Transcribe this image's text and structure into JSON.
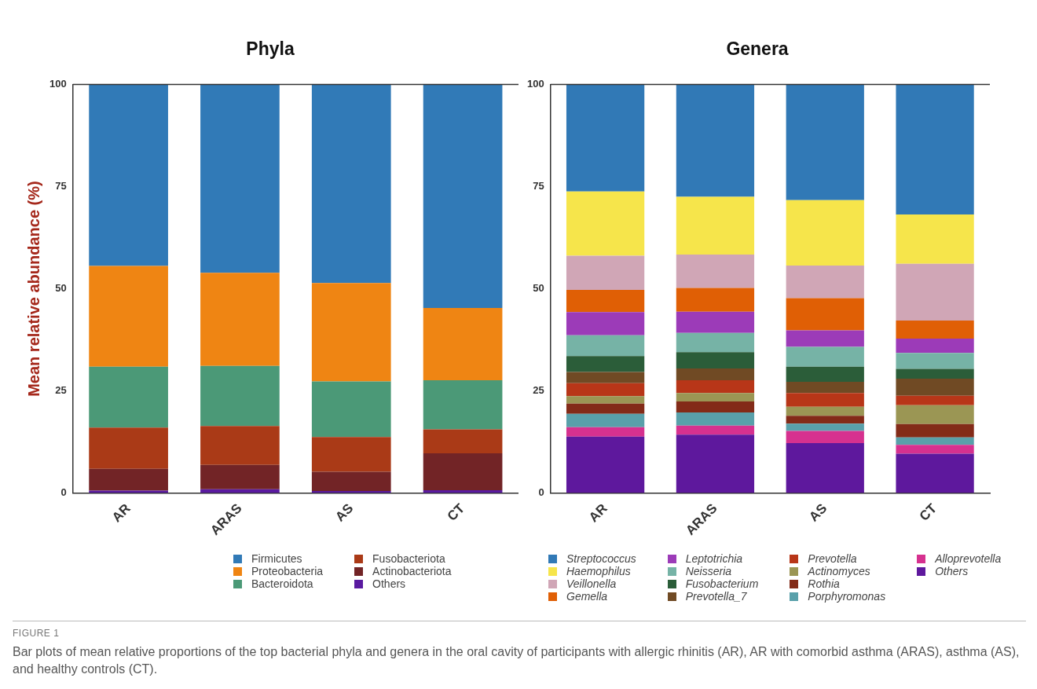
{
  "chart_data": [
    {
      "type": "bar",
      "title": "Phyla",
      "ylabel": "Mean relative abundance (%)",
      "categories": [
        "AR",
        "ARAS",
        "AS",
        "CT"
      ],
      "stacked": true,
      "ylim": [
        0,
        100
      ],
      "yticks": [
        0,
        25,
        50,
        75,
        100
      ],
      "grid": false,
      "legend": "bottom",
      "series": [
        {
          "name": "Others",
          "color": "#5a1aa0",
          "values": [
            0.6,
            0.9,
            0.5,
            0.7
          ]
        },
        {
          "name": "Actinobacteriota",
          "color": "#722426",
          "values": [
            5.3,
            6.0,
            4.7,
            9.0
          ]
        },
        {
          "name": "Fusobacteriota",
          "color": "#aa3a17",
          "values": [
            10.1,
            9.5,
            8.5,
            5.9
          ]
        },
        {
          "name": "Bacteroidota",
          "color": "#4b9977",
          "values": [
            14.9,
            14.7,
            13.6,
            12.0
          ]
        },
        {
          "name": "Proteobacteria",
          "color": "#ef8513",
          "values": [
            24.7,
            22.8,
            24.1,
            17.7
          ]
        },
        {
          "name": "Firmicutes",
          "color": "#317ab7",
          "values": [
            44.4,
            46.1,
            48.6,
            54.7
          ]
        }
      ],
      "annotations": [
        "FIGURE 1",
        "Bar plots of mean relative proportions of the top bacterial phyla and genera in the oral cavity of participants with allergic rhinitis (AR), AR with comorbid asthma (ARAS), asthma (AS), and healthy controls (CT)."
      ]
    },
    {
      "type": "bar",
      "title": "Genera",
      "categories": [
        "AR",
        "ARAS",
        "AS",
        "CT"
      ],
      "stacked": true,
      "ylim": [
        0,
        100
      ],
      "yticks": [
        0,
        25,
        50,
        75,
        100
      ],
      "grid": false,
      "legend": "bottom",
      "series": [
        {
          "name": "Others",
          "color": "#5e189d",
          "values": [
            13.8,
            14.3,
            12.2,
            9.6
          ]
        },
        {
          "name": "Alloprevotella",
          "color": "#d6318f",
          "values": [
            2.3,
            2.2,
            3.0,
            2.2
          ]
        },
        {
          "name": "Porphyromonas",
          "color": "#59a0aa",
          "values": [
            3.3,
            3.2,
            1.8,
            1.8
          ]
        },
        {
          "name": "Rothia",
          "color": "#832b18",
          "values": [
            2.5,
            2.7,
            1.9,
            3.3
          ]
        },
        {
          "name": "Actinomyces",
          "color": "#9b9654",
          "values": [
            1.8,
            2.1,
            2.2,
            4.6
          ]
        },
        {
          "name": "Prevotella",
          "color": "#b83618",
          "values": [
            3.2,
            3.1,
            3.4,
            2.3
          ]
        },
        {
          "name": "Prevotella_7",
          "color": "#704a24",
          "values": [
            2.7,
            2.9,
            2.7,
            4.2
          ]
        },
        {
          "name": "Fusobacterium",
          "color": "#2b5d39",
          "values": [
            3.9,
            4.0,
            3.7,
            2.4
          ]
        },
        {
          "name": "Neisseria",
          "color": "#76b3a6",
          "values": [
            5.1,
            4.7,
            4.9,
            3.9
          ]
        },
        {
          "name": "Leptotrichia",
          "color": "#9c3bb8",
          "values": [
            5.7,
            5.2,
            4.0,
            3.5
          ]
        },
        {
          "name": "Gemella",
          "color": "#e05f05",
          "values": [
            5.4,
            5.8,
            7.9,
            4.4
          ]
        },
        {
          "name": "Veillonella",
          "color": "#d0a6b6",
          "values": [
            8.4,
            8.2,
            8.0,
            13.9
          ]
        },
        {
          "name": "Haemophilus",
          "color": "#f6e54b",
          "values": [
            15.7,
            14.1,
            16.0,
            12.1
          ]
        },
        {
          "name": "Streptococcus",
          "color": "#3179b6",
          "values": [
            26.2,
            27.5,
            28.3,
            31.8
          ]
        }
      ]
    }
  ]
}
